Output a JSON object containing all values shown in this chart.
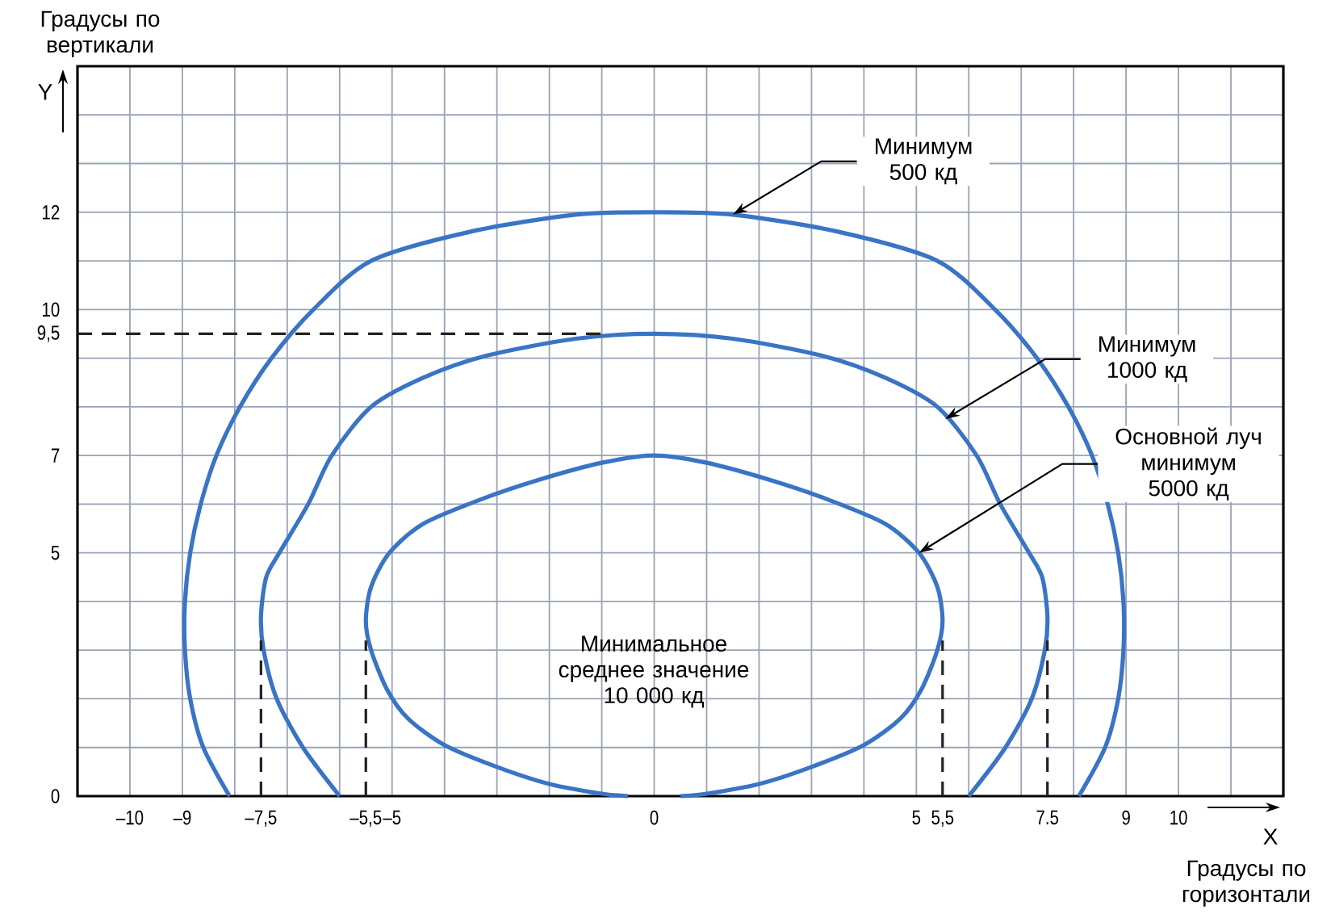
{
  "chart_data": {
    "type": "line",
    "xlabel": "Градусы по горизонтали",
    "ylabel": "Градусы по вертикали",
    "xlim": [
      -11,
      12
    ],
    "ylim": [
      0,
      15
    ],
    "xticks": [
      {
        "value": -10,
        "label": "–10"
      },
      {
        "value": -9,
        "label": "–9"
      },
      {
        "value": -8,
        "label": null
      },
      {
        "value": -7.5,
        "label": "–7,5"
      },
      {
        "value": -7,
        "label": null
      },
      {
        "value": -6,
        "label": null
      },
      {
        "value": -5.5,
        "label": "–5,5"
      },
      {
        "value": -5,
        "label": "–5"
      },
      {
        "value": -4,
        "label": null
      },
      {
        "value": -3,
        "label": null
      },
      {
        "value": -2,
        "label": null
      },
      {
        "value": -1,
        "label": null
      },
      0,
      {
        "value": 1,
        "label": null
      },
      {
        "value": 2,
        "label": null
      },
      {
        "value": 3,
        "label": null
      },
      {
        "value": 4,
        "label": null
      },
      5,
      {
        "value": 5.5,
        "label": "5,5"
      },
      {
        "value": 6,
        "label": null
      },
      {
        "value": 7,
        "label": null
      },
      {
        "value": 7.5,
        "label": "7.5"
      },
      {
        "value": 8,
        "label": null
      },
      9,
      10,
      {
        "value": 11,
        "label": null
      }
    ],
    "yticks": [
      0,
      {
        "value": 1,
        "label": null
      },
      {
        "value": 2,
        "label": null
      },
      {
        "value": 3,
        "label": null
      },
      {
        "value": 4,
        "label": null
      },
      5,
      {
        "value": 6,
        "label": null
      },
      7,
      {
        "value": 8,
        "label": null
      },
      {
        "value": 9,
        "label": null
      },
      {
        "value": 9.5,
        "label": "9,5"
      },
      10,
      {
        "value": 11,
        "label": null
      },
      12,
      {
        "value": 13,
        "label": null
      },
      {
        "value": 14,
        "label": null
      }
    ],
    "grid": true,
    "series": [
      {
        "color": "#3a74c4",
        "x": [
          -8.1,
          -8.6,
          -8.85,
          -8.95,
          -8.95,
          -8.85,
          -8.65,
          -8.35,
          -7.9,
          -7.3,
          -6.5,
          -5.4,
          -3.5,
          -1.5,
          0,
          1.5,
          3.5,
          5.4,
          6.5,
          7.3,
          7.9,
          8.35,
          8.65,
          8.85,
          8.95,
          8.95,
          8.85,
          8.6,
          8.1
        ],
        "values": [
          0,
          1,
          2,
          3,
          4,
          5,
          6,
          7,
          8,
          9,
          10,
          11,
          11.6,
          11.95,
          12,
          11.95,
          11.6,
          11,
          10,
          9,
          8,
          7,
          6,
          5,
          4,
          3,
          2,
          1,
          0
        ]
      },
      {
        "color": "#3a74c4",
        "x": [
          -6.0,
          -6.7,
          -7.2,
          -7.45,
          -7.5,
          -7.4,
          -7.15,
          -6.6,
          -6.15,
          -5.4,
          -4.4,
          -3.2,
          -1.5,
          0,
          1.5,
          3.2,
          4.4,
          5.4,
          6.15,
          6.6,
          7.15,
          7.4,
          7.5,
          7.45,
          7.2,
          6.7,
          6.0
        ],
        "values": [
          0,
          1,
          2,
          3,
          3.7,
          4.5,
          5,
          6,
          7,
          8,
          8.6,
          9.05,
          9.4,
          9.5,
          9.4,
          9.05,
          8.6,
          8,
          7,
          6,
          5,
          4.5,
          3.7,
          3,
          2,
          1,
          0
        ]
      },
      {
        "color": "#3a74c4",
        "x": [
          -0.5,
          -1,
          -2,
          -3,
          -4,
          -4.7,
          -5.1,
          -5.4,
          -5.5,
          -5.4,
          -5.05,
          -4.4,
          -3.3,
          -2.2,
          -1,
          0,
          1,
          2.2,
          3.3,
          4.4,
          5.05,
          5.4,
          5.5,
          5.4,
          5.1,
          4.7,
          4,
          3,
          2,
          1,
          0.5
        ],
        "values": [
          0,
          0.05,
          0.25,
          0.6,
          1.05,
          1.6,
          2.2,
          3,
          3.6,
          4.3,
          5,
          5.6,
          6.1,
          6.5,
          6.85,
          7,
          6.85,
          6.5,
          6.1,
          5.6,
          5,
          4.3,
          3.6,
          3,
          2.2,
          1.6,
          1.05,
          0.6,
          0.25,
          0.05,
          0
        ]
      },
      {
        "color": "#222222",
        "line_style": "dashed",
        "x": [
          -11,
          -0.9
        ],
        "values": [
          9.5,
          9.5
        ]
      },
      {
        "color": "#222222",
        "line_style": "dashed",
        "x": [
          -7.5,
          -7.5
        ],
        "values": [
          0,
          3.2
        ]
      },
      {
        "color": "#222222",
        "line_style": "dashed",
        "x": [
          -5.5,
          -5.5
        ],
        "values": [
          0,
          3.2
        ]
      },
      {
        "color": "#222222",
        "line_style": "dashed",
        "x": [
          5.5,
          5.5
        ],
        "values": [
          0,
          3.2
        ]
      },
      {
        "color": "#222222",
        "line_style": "dashed",
        "x": [
          7.5,
          7.5
        ],
        "values": [
          0,
          3.2
        ]
      }
    ],
    "annotations": [
      {
        "text": "Минимум 500 кд",
        "x": 1.5,
        "y": 11.95
      },
      {
        "text": "Минимум 1000 кд",
        "x": 5.55,
        "y": 7.75
      },
      {
        "text": "Основной луч минимум 5000 кд",
        "x": 5.05,
        "y": 5
      },
      "Минимальное среднее значение 10 000 кд",
      "Y",
      "X"
    ]
  }
}
